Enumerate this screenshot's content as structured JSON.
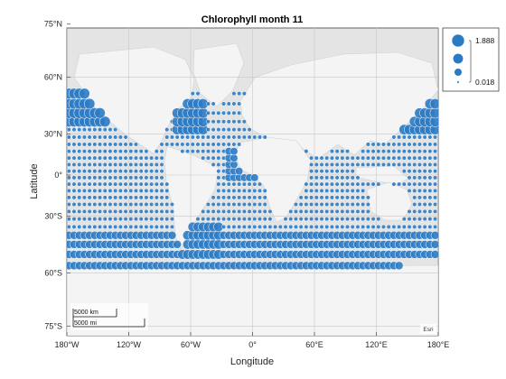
{
  "chart_data": {
    "type": "scatter",
    "subtype": "geographic bubble chart",
    "title": "Chlorophyll month 11",
    "xlabel": "Longitude",
    "ylabel": "Latitude",
    "xlim": [
      -180,
      180
    ],
    "ylim": [
      -85,
      85
    ],
    "x_ticks": [
      -180,
      -120,
      -60,
      0,
      60,
      120,
      180
    ],
    "x_tick_labels": [
      "180°W",
      "120°W",
      "60°W",
      "0°",
      "60°E",
      "120°E",
      "180°E"
    ],
    "y_ticks": [
      75,
      60,
      30,
      0,
      -30,
      -60,
      -75
    ],
    "y_tick_labels": [
      "75°N",
      "60°N",
      "30°N",
      "0°",
      "30°S",
      "60°S",
      "75°S"
    ],
    "grid": true,
    "basemap": "grayland",
    "marker_color": "#2b7bc4",
    "size_legend": {
      "placement": "top-right outside",
      "max_label": "1.888",
      "min_label": "0.018",
      "values": [
        1.888,
        1.2,
        0.6,
        0.018
      ]
    },
    "scale_bar": {
      "km_label": "5000 km",
      "mi_label": "5000 mi"
    },
    "attribution": "Esri",
    "ocean_grid_spacing_deg": 5,
    "coverage_latitude_range": [
      -62,
      53
    ],
    "high_value_regions": [
      {
        "lon_range": [
          -180,
          -125
        ],
        "lat_range": [
          35,
          53
        ],
        "value": 1.3
      },
      {
        "lon_range": [
          -75,
          -45
        ],
        "lat_range": [
          30,
          52
        ],
        "value": 1.2
      },
      {
        "lon_range": [
          140,
          180
        ],
        "lat_range": [
          30,
          53
        ],
        "value": 1.2
      },
      {
        "lon_range": [
          -70,
          -30
        ],
        "lat_range": [
          -55,
          -35
        ],
        "value": 1.0
      },
      {
        "lon_range": [
          -180,
          180
        ],
        "lat_range": [
          -62,
          -40
        ],
        "value": 0.7
      },
      {
        "lon_range": [
          -25,
          15
        ],
        "lat_range": [
          -5,
          20
        ],
        "value": 0.6
      }
    ]
  }
}
